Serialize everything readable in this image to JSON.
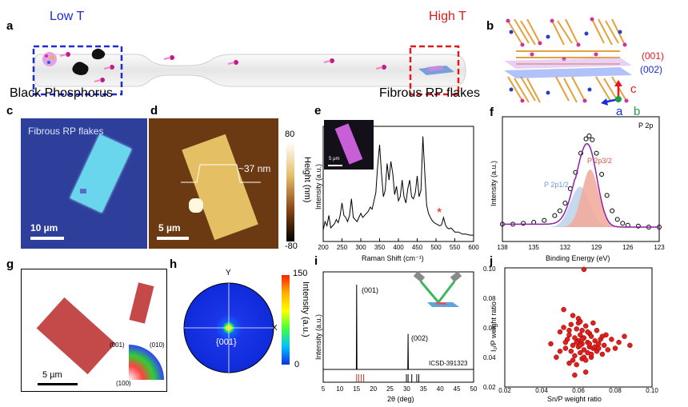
{
  "panels": {
    "a": {
      "label": "a",
      "low_t": "Low T",
      "high_t": "High T",
      "left_caption": "Black Phosphorus",
      "right_caption": "Fibrous RP flakes"
    },
    "b": {
      "label": "b",
      "plane_001": "(001)",
      "plane_002": "(002)",
      "axis_c": "c",
      "axis_a": "a",
      "axis_b": "b"
    },
    "c": {
      "label": "c",
      "caption": "Fibrous RP flakes",
      "scalebar": "10 µm"
    },
    "d": {
      "label": "d",
      "height_label": "~37 nm",
      "scalebar": "5 µm",
      "cb_max": "80",
      "cb_min": "-80",
      "cb_title": "Height (nm)"
    },
    "e": {
      "label": "e",
      "inset_scalebar": "5 µm",
      "ylabel": "Intensity (a.u.)",
      "xlabel": "Raman Shift (cm⁻¹)",
      "star": "*",
      "xticks": [
        "200",
        "250",
        "300",
        "350",
        "400",
        "450",
        "500",
        "550",
        "600"
      ]
    },
    "f": {
      "label": "f",
      "title": "P 2p",
      "peak1": "P 2p3/2",
      "peak2": "P 2p1/2",
      "ylabel": "Intensity (a.u.)",
      "xlabel": "Binding Energy (eV)",
      "xticks": [
        "138",
        "135",
        "132",
        "129",
        "126",
        "123"
      ]
    },
    "g": {
      "label": "g",
      "scalebar": "5 µm",
      "ipf_001": "(001)",
      "ipf_010": "(010)",
      "ipf_100": "(100)"
    },
    "h": {
      "label": "h",
      "axis_y": "Y",
      "axis_x": "X",
      "center": "{001}",
      "cb_max": "150",
      "cb_min": "0",
      "cb_title": "Intensity (a.u.)"
    },
    "i": {
      "label": "i",
      "peak1": "(001)",
      "peak2": "(002)",
      "ref": "ICSD-391323",
      "ylabel": "Intensity (a.u.)",
      "xlabel": "2θ (deg)",
      "xticks": [
        "5",
        "10",
        "15",
        "20",
        "25",
        "30",
        "35",
        "40",
        "45",
        "50"
      ]
    },
    "j": {
      "label": "j",
      "ylabel": "I₂/P weight ratio",
      "xlabel": "Sn/P weight ratio",
      "xticks": [
        "0.02",
        "0.04",
        "0.06",
        "0.08",
        "0.10"
      ],
      "yticks": [
        "0.02",
        "0.04",
        "0.06",
        "0.08",
        "0.10"
      ]
    }
  },
  "chart_data": [
    {
      "type": "line",
      "panel": "e",
      "xlabel": "Raman Shift (cm⁻¹)",
      "ylabel": "Intensity (a.u.)",
      "xlim": [
        200,
        600
      ],
      "x": [
        200,
        205,
        210,
        215,
        220,
        225,
        230,
        235,
        240,
        245,
        250,
        255,
        260,
        265,
        270,
        275,
        280,
        285,
        290,
        295,
        300,
        305,
        310,
        315,
        320,
        325,
        330,
        335,
        340,
        345,
        350,
        355,
        360,
        365,
        370,
        375,
        380,
        385,
        390,
        395,
        400,
        405,
        410,
        415,
        420,
        425,
        430,
        435,
        440,
        445,
        450,
        455,
        460,
        465,
        470,
        475,
        480,
        485,
        490,
        495,
        500,
        505,
        510,
        515,
        520,
        525,
        530,
        535,
        540,
        545,
        550,
        560,
        570,
        580,
        590,
        600
      ],
      "y": [
        0.08,
        0.16,
        0.12,
        0.22,
        0.1,
        0.12,
        0.14,
        0.18,
        0.15,
        0.22,
        0.34,
        0.22,
        0.2,
        0.16,
        0.22,
        0.38,
        0.2,
        0.18,
        0.16,
        0.2,
        0.24,
        0.2,
        0.22,
        0.24,
        0.26,
        0.3,
        0.28,
        0.36,
        0.44,
        0.7,
        0.9,
        0.62,
        0.4,
        0.46,
        0.72,
        0.56,
        0.74,
        0.62,
        0.42,
        0.5,
        0.36,
        0.4,
        0.56,
        0.4,
        0.34,
        0.48,
        0.56,
        0.4,
        0.38,
        0.44,
        0.6,
        0.4,
        0.46,
        0.98,
        0.64,
        0.32,
        0.24,
        0.2,
        0.17,
        0.15,
        0.14,
        0.13,
        0.12,
        0.13,
        0.2,
        0.13,
        0.1,
        0.09,
        0.1,
        0.08,
        0.06,
        0.06,
        0.04,
        0.04,
        0.03,
        0.03
      ]
    },
    {
      "type": "line",
      "panel": "f",
      "xlabel": "Binding Energy (eV)",
      "ylabel": "Intensity (a.u.)",
      "xlim": [
        138,
        123
      ],
      "series": [
        {
          "x": [
            138,
            137,
            136,
            135,
            134,
            133,
            132.5,
            132,
            131.5,
            131,
            130.5,
            130,
            129.7,
            129.4,
            129,
            128.5,
            128,
            127.5,
            127,
            126.5,
            126,
            125,
            124,
            123
          ],
          "y": [
            0.08,
            0.08,
            0.09,
            0.1,
            0.12,
            0.17,
            0.22,
            0.3,
            0.45,
            0.62,
            0.82,
            0.97,
            1.0,
            0.96,
            0.82,
            0.6,
            0.38,
            0.22,
            0.13,
            0.09,
            0.07,
            0.06,
            0.05,
            0.05
          ]
        }
      ]
    },
    {
      "type": "line",
      "panel": "i",
      "xlabel": "2θ (deg)",
      "ylabel": "Intensity (a.u.)",
      "xlim": [
        5,
        50
      ],
      "series": [
        {
          "x": [
            5,
            14.9,
            15.0,
            15.1,
            30.3,
            30.4,
            30.5,
            50
          ],
          "y": [
            0,
            0,
            1.0,
            0,
            0,
            0.42,
            0,
            0
          ]
        }
      ],
      "reference_peaks": [
        15.0,
        15.6,
        16.4,
        17.1,
        29.9,
        30.4,
        31.5,
        33.0,
        33.6
      ]
    },
    {
      "type": "scatter",
      "panel": "j",
      "xlabel": "Sn/P weight ratio",
      "ylabel": "I₂/P weight ratio",
      "xlim": [
        0.02,
        0.1
      ],
      "ylim": [
        0.02,
        0.1
      ],
      "x": [
        0.063,
        0.045,
        0.048,
        0.05,
        0.052,
        0.053,
        0.054,
        0.055,
        0.056,
        0.056,
        0.057,
        0.057,
        0.058,
        0.058,
        0.059,
        0.059,
        0.06,
        0.06,
        0.06,
        0.061,
        0.061,
        0.062,
        0.062,
        0.062,
        0.063,
        0.063,
        0.064,
        0.064,
        0.065,
        0.065,
        0.066,
        0.066,
        0.067,
        0.067,
        0.068,
        0.068,
        0.069,
        0.07,
        0.07,
        0.071,
        0.072,
        0.073,
        0.074,
        0.075,
        0.076,
        0.078,
        0.08,
        0.082,
        0.085,
        0.088,
        0.05,
        0.052,
        0.055,
        0.057,
        0.059,
        0.061,
        0.063,
        0.065,
        0.067,
        0.069,
        0.058,
        0.06,
        0.062,
        0.064,
        0.066,
        0.055,
        0.071,
        0.053,
        0.073,
        0.061
      ],
      "y": [
        0.099,
        0.049,
        0.04,
        0.057,
        0.072,
        0.046,
        0.052,
        0.036,
        0.062,
        0.044,
        0.048,
        0.068,
        0.041,
        0.053,
        0.059,
        0.035,
        0.047,
        0.051,
        0.066,
        0.043,
        0.055,
        0.039,
        0.049,
        0.058,
        0.045,
        0.053,
        0.03,
        0.061,
        0.043,
        0.05,
        0.047,
        0.056,
        0.04,
        0.054,
        0.046,
        0.063,
        0.051,
        0.044,
        0.058,
        0.049,
        0.052,
        0.042,
        0.048,
        0.055,
        0.045,
        0.052,
        0.046,
        0.05,
        0.054,
        0.048,
        0.044,
        0.06,
        0.055,
        0.038,
        0.05,
        0.048,
        0.04,
        0.057,
        0.042,
        0.047,
        0.028,
        0.063,
        0.052,
        0.038,
        0.049,
        0.058,
        0.046,
        0.05,
        0.054,
        0.064
      ]
    },
    {
      "type": "heatmap",
      "panel": "h",
      "title": "{001}",
      "color_range": [
        0,
        150
      ],
      "peak_at": "center"
    }
  ]
}
